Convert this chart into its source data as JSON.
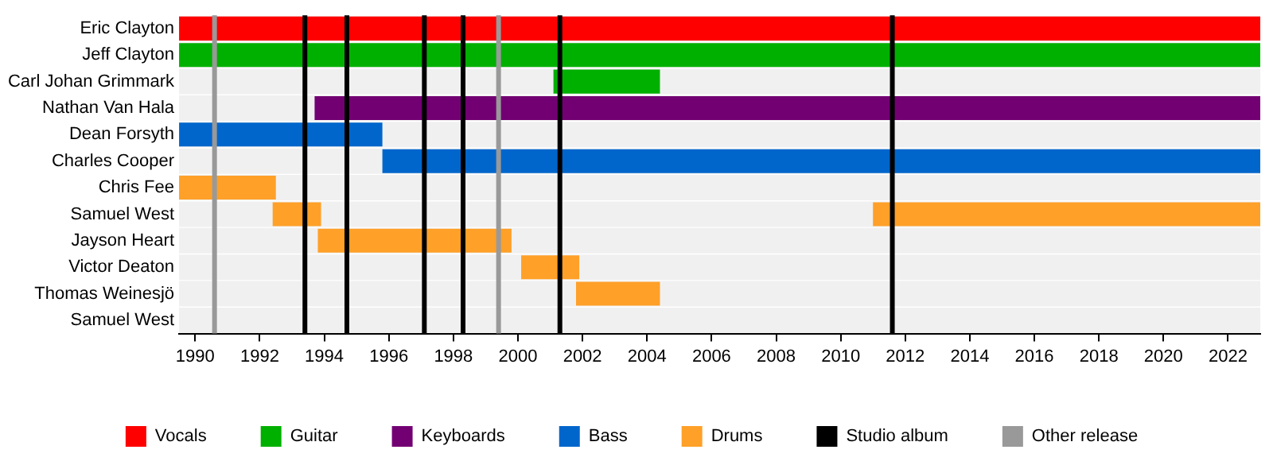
{
  "chart_data": {
    "type": "bar",
    "orientation": "horizontal",
    "categories": [
      "Eric Clayton",
      "Jeff Clayton",
      "Carl Johan Grimmark",
      "Nathan Van Hala",
      "Dean Forsyth",
      "Charles Cooper",
      "Chris Fee",
      "Samuel West",
      "Jayson Heart",
      "Victor Deaton",
      "Thomas Weinesjö",
      "Samuel West"
    ],
    "series": [
      {
        "name": "Vocals",
        "color": "#ff0000",
        "base": [
          1989.5,
          null,
          null,
          null,
          null,
          null,
          null,
          null,
          null,
          null,
          null,
          null
        ],
        "values": [
          33.5,
          null,
          null,
          null,
          null,
          null,
          null,
          null,
          null,
          null,
          null,
          null
        ]
      },
      {
        "name": "Guitar",
        "color": "#00b000",
        "base": [
          null,
          1989.5,
          2001.1,
          null,
          null,
          null,
          null,
          null,
          null,
          null,
          null,
          null
        ],
        "values": [
          null,
          33.5,
          3.3,
          null,
          null,
          null,
          null,
          null,
          null,
          null,
          null,
          null
        ]
      },
      {
        "name": "Keyboards",
        "color": "#730073",
        "base": [
          null,
          null,
          null,
          1993.7,
          null,
          null,
          null,
          null,
          null,
          null,
          null,
          null
        ],
        "values": [
          null,
          null,
          null,
          29.3,
          null,
          null,
          null,
          null,
          null,
          null,
          null,
          null
        ]
      },
      {
        "name": "Bass",
        "color": "#0066cc",
        "base": [
          null,
          null,
          null,
          null,
          1989.5,
          1995.8,
          null,
          null,
          null,
          null,
          null,
          null
        ],
        "values": [
          null,
          null,
          null,
          null,
          6.3,
          27.2,
          null,
          null,
          null,
          null,
          null,
          null
        ]
      },
      {
        "name": "Drums",
        "color": "#ffa028",
        "base": [
          null,
          null,
          null,
          null,
          null,
          null,
          1989.5,
          1992.4,
          1993.8,
          2000.1,
          2001.8,
          null
        ],
        "values": [
          null,
          null,
          null,
          null,
          null,
          null,
          3.0,
          1.5,
          6.0,
          1.8,
          2.6,
          null
        ]
      },
      {
        "color": "#ffa028",
        "base": [
          null,
          null,
          null,
          null,
          null,
          null,
          null,
          2011.0,
          null,
          null,
          null,
          null
        ],
        "values": [
          null,
          null,
          null,
          null,
          null,
          null,
          null,
          12.0,
          null,
          null,
          null,
          null
        ]
      }
    ],
    "xlim": [
      1989.5,
      2023
    ],
    "xticks": [
      1990,
      1992,
      1994,
      1996,
      1998,
      2000,
      2002,
      2004,
      2006,
      2008,
      2010,
      2012,
      2014,
      2016,
      2018,
      2020,
      2022
    ],
    "ref_lines": [
      {
        "axis": "x",
        "value": 1993.4,
        "label": "Studio album",
        "color": "#000000"
      },
      {
        "axis": "x",
        "value": 1994.7,
        "color": "#000000"
      },
      {
        "axis": "x",
        "value": 1997.1,
        "color": "#000000"
      },
      {
        "axis": "x",
        "value": 1998.3,
        "color": "#000000"
      },
      {
        "axis": "x",
        "value": 2001.3,
        "color": "#000000"
      },
      {
        "axis": "x",
        "value": 2011.6,
        "color": "#000000"
      },
      {
        "axis": "x",
        "value": 1990.6,
        "label": "Other release",
        "color": "#999999"
      },
      {
        "axis": "x",
        "value": 1999.4,
        "color": "#999999"
      }
    ],
    "grid": false,
    "legend": "bottom"
  }
}
